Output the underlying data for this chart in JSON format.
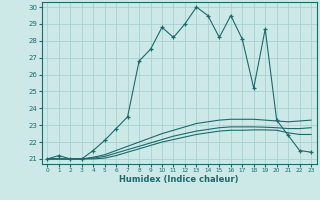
{
  "title": "",
  "xlabel": "Humidex (Indice chaleur)",
  "xlim": [
    -0.5,
    23.5
  ],
  "ylim": [
    20.7,
    30.3
  ],
  "yticks": [
    21,
    22,
    23,
    24,
    25,
    26,
    27,
    28,
    29,
    30
  ],
  "xticks": [
    0,
    1,
    2,
    3,
    4,
    5,
    6,
    7,
    8,
    9,
    10,
    11,
    12,
    13,
    14,
    15,
    16,
    17,
    18,
    19,
    20,
    21,
    22,
    23
  ],
  "bg_color": "#cce9e8",
  "grid_color": "#9fcfce",
  "line_color": "#1a6b6b",
  "y_main": [
    21.0,
    21.2,
    21.0,
    21.0,
    21.5,
    22.1,
    22.8,
    23.5,
    26.8,
    27.5,
    28.8,
    28.2,
    29.0,
    30.0,
    29.5,
    28.2,
    29.5,
    28.1,
    25.2,
    28.7,
    23.3,
    22.4,
    21.5,
    21.4
  ],
  "y_line1": [
    21.0,
    21.0,
    21.0,
    21.0,
    21.1,
    21.25,
    21.5,
    21.75,
    22.0,
    22.25,
    22.5,
    22.7,
    22.9,
    23.1,
    23.2,
    23.3,
    23.35,
    23.35,
    23.35,
    23.3,
    23.25,
    23.2,
    23.25,
    23.3
  ],
  "y_line2": [
    21.0,
    21.0,
    21.0,
    21.0,
    21.05,
    21.15,
    21.35,
    21.55,
    21.75,
    21.95,
    22.15,
    22.35,
    22.5,
    22.65,
    22.75,
    22.85,
    22.9,
    22.9,
    22.9,
    22.88,
    22.85,
    22.8,
    22.8,
    22.85
  ],
  "y_line3": [
    21.0,
    21.0,
    21.0,
    21.0,
    21.0,
    21.05,
    21.2,
    21.4,
    21.6,
    21.8,
    22.0,
    22.15,
    22.3,
    22.45,
    22.55,
    22.65,
    22.7,
    22.7,
    22.72,
    22.72,
    22.7,
    22.55,
    22.45,
    22.45
  ]
}
